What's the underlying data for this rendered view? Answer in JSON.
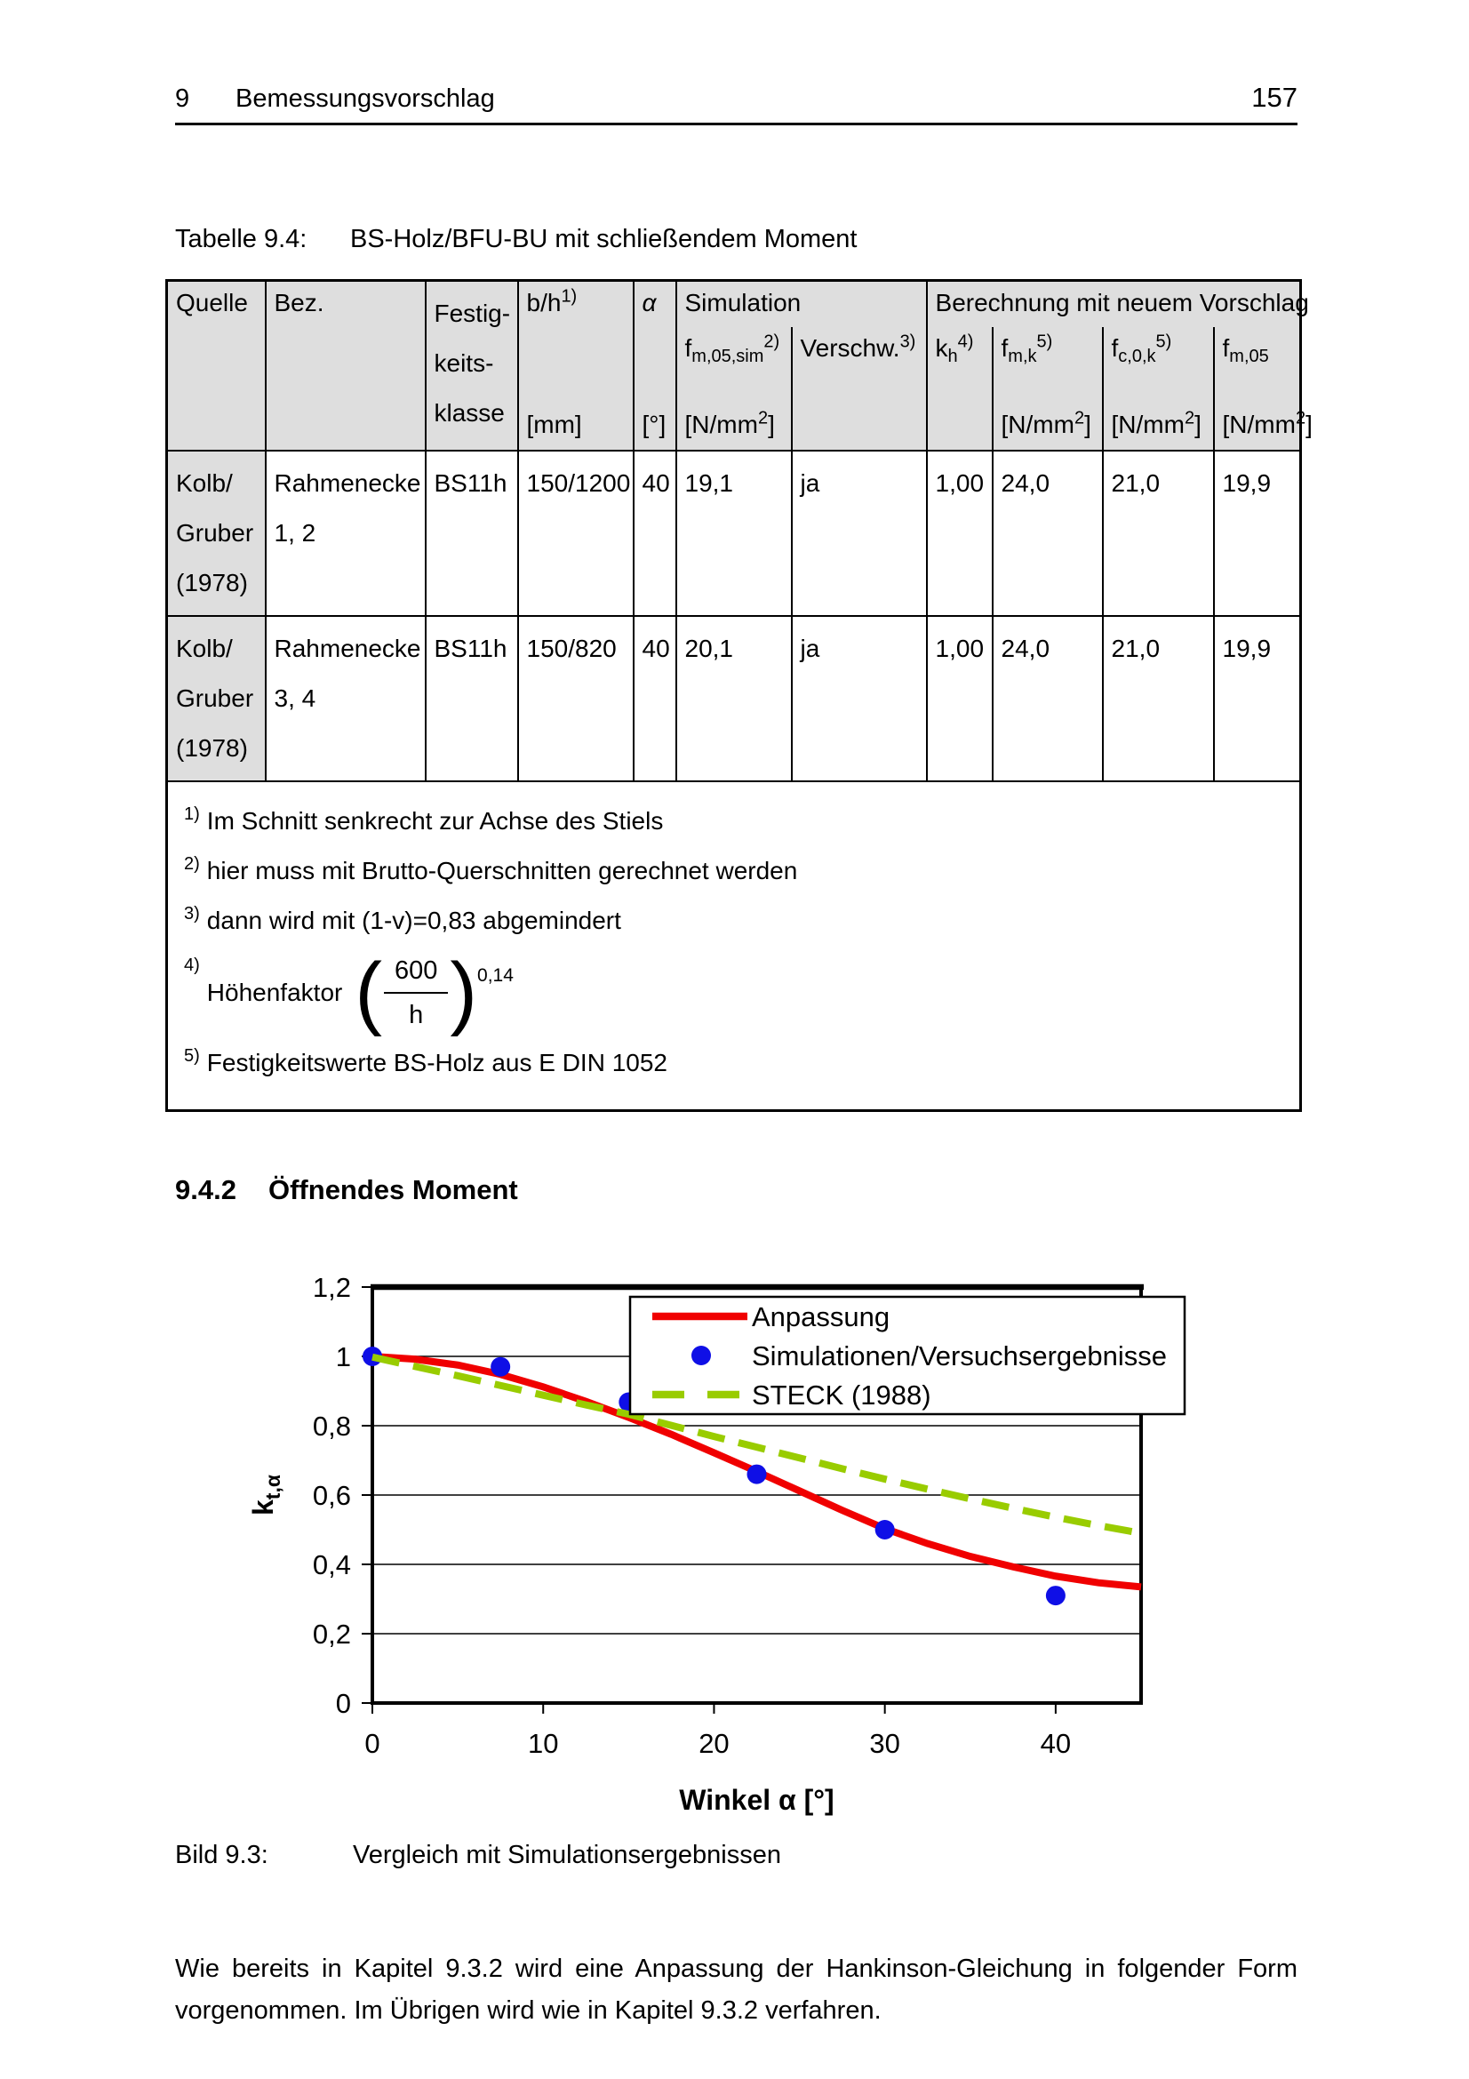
{
  "page": {
    "header": {
      "chapter_number": "9",
      "chapter_title": "Bemessungsvorschlag",
      "page_number": "157"
    },
    "table": {
      "title_label": "Tabelle 9.4:",
      "title_text": "BS-Holz/BFU-BU mit schließendem Moment",
      "headers": {
        "quelle": "Quelle",
        "bez": "Bez.",
        "festig_lines": [
          "Festig-",
          "keits-",
          "klasse"
        ],
        "bh": {
          "base": "b/h",
          "sup": "1)",
          "unit": "[mm]"
        },
        "alpha": {
          "base": "α",
          "unit": "[°]"
        },
        "sim_group": "Simulation",
        "fsim": {
          "f": "f",
          "sub": "m,05,sim",
          "sup": "2)",
          "unit": {
            "p": "[N/mm",
            "s": "2",
            "q": "]"
          }
        },
        "verschw": {
          "base": "Verschw.",
          "sup": "3)"
        },
        "ber_group": "Berechnung mit neuem Vorschlag",
        "kh": {
          "f": "k",
          "sub": "h",
          "sup": "4)"
        },
        "fmk": {
          "f": "f",
          "sub": "m,k",
          "sup": "5)",
          "unit": {
            "p": "[N/mm",
            "s": "2",
            "q": "]"
          }
        },
        "fc0k": {
          "f": "f",
          "sub": "c,0,k",
          "sup": "5)",
          "unit": {
            "p": "[N/mm",
            "s": "2",
            "q": "]"
          }
        },
        "fm05": {
          "f": "f",
          "sub": "m,05",
          "unit": {
            "p": "[N/mm",
            "s": "2",
            "q": "]"
          }
        }
      },
      "rows": [
        {
          "quelle_lines": [
            "Kolb/",
            "Gruber",
            "(1978)"
          ],
          "bez_lines": [
            "Rahmenecke",
            "1, 2"
          ],
          "festig": "BS11h",
          "bh": "150/1200",
          "alpha": "40",
          "fsim": "19,1",
          "verschw": "ja",
          "kh": "1,00",
          "fmk": "24,0",
          "fc0k": "21,0",
          "fm05": "19,9"
        },
        {
          "quelle_lines": [
            "Kolb/",
            "Gruber",
            "(1978)"
          ],
          "bez_lines": [
            "Rahmenecke",
            "3, 4"
          ],
          "festig": "BS11h",
          "bh": "150/820",
          "alpha": "40",
          "fsim": "20,1",
          "verschw": "ja",
          "kh": "1,00",
          "fmk": "24,0",
          "fc0k": "21,0",
          "fm05": "19,9"
        }
      ],
      "footnotes": [
        {
          "num": "1)",
          "text": "Im Schnitt senkrecht zur Achse des Stiels"
        },
        {
          "num": "2)",
          "text": "hier muss mit Brutto-Querschnitten gerechnet werden"
        },
        {
          "num": "3)",
          "text": "dann wird mit (1-v)=0,83 abgemindert"
        },
        {
          "num": "4)",
          "label": "Höhenfaktor",
          "frac_num": "600",
          "frac_den": "h",
          "exponent": "0,14"
        },
        {
          "num": "5)",
          "text": "Festigkeitswerte BS-Holz aus E DIN 1052"
        }
      ]
    },
    "section": {
      "number": "9.4.2",
      "title": "Öffnendes Moment"
    },
    "figure": {
      "caption_label": "Bild 9.3:",
      "caption_text": "Vergleich mit Simulationsergebnissen"
    },
    "paragraph": "Wie bereits in Kapitel 9.3.2 wird eine Anpassung der Hankinson-Gleichung in folgender Form vorgenommen. Im Übrigen wird wie in Kapitel 9.3.2 verfahren."
  },
  "chart_data": {
    "type": "line+scatter",
    "xlabel": "Winkel α [°]",
    "ylabel_base": "k",
    "ylabel_sub": "t,α",
    "xlim": [
      0,
      45
    ],
    "ylim": [
      0,
      1.2
    ],
    "x_ticks": [
      0,
      10,
      20,
      30,
      40
    ],
    "y_ticks": [
      {
        "v": 0.0,
        "label": "0"
      },
      {
        "v": 0.2,
        "label": "0,2"
      },
      {
        "v": 0.4,
        "label": "0,4"
      },
      {
        "v": 0.6,
        "label": "0,6"
      },
      {
        "v": 0.8,
        "label": "0,8"
      },
      {
        "v": 1.0,
        "label": "1"
      },
      {
        "v": 1.2,
        "label": "1,2"
      }
    ],
    "grid": "horizontal",
    "legend_position": "top-right-overlay",
    "series": [
      {
        "name": "Anpassung",
        "type": "line",
        "style": "solid",
        "color": "#f00000",
        "points": [
          [
            0,
            1.0
          ],
          [
            2.5,
            0.992
          ],
          [
            5,
            0.975
          ],
          [
            7.5,
            0.948
          ],
          [
            10,
            0.912
          ],
          [
            12.5,
            0.87
          ],
          [
            15,
            0.824
          ],
          [
            17.5,
            0.775
          ],
          [
            20,
            0.722
          ],
          [
            22.5,
            0.668
          ],
          [
            25,
            0.612
          ],
          [
            27.5,
            0.556
          ],
          [
            30,
            0.503
          ],
          [
            32.5,
            0.46
          ],
          [
            35,
            0.423
          ],
          [
            37.5,
            0.393
          ],
          [
            40,
            0.366
          ],
          [
            42.5,
            0.347
          ],
          [
            45,
            0.335
          ]
        ]
      },
      {
        "name": "Simulationen/Versuchsergebnisse",
        "type": "scatter",
        "color": "#0f0fe6",
        "points": [
          [
            0,
            1.0
          ],
          [
            7.5,
            0.97
          ],
          [
            15,
            0.868
          ],
          [
            22.5,
            0.66
          ],
          [
            30,
            0.5
          ],
          [
            40,
            0.31
          ]
        ]
      },
      {
        "name": "STECK (1988)",
        "type": "line",
        "style": "dashed",
        "color": "#99cc00",
        "points": [
          [
            0,
            0.998
          ],
          [
            2.5,
            0.971
          ],
          [
            5,
            0.944
          ],
          [
            7.5,
            0.916
          ],
          [
            10,
            0.888
          ],
          [
            12.5,
            0.86
          ],
          [
            15,
            0.833
          ],
          [
            17.5,
            0.801
          ],
          [
            20,
            0.769
          ],
          [
            22.5,
            0.738
          ],
          [
            25,
            0.707
          ],
          [
            27.5,
            0.676
          ],
          [
            30,
            0.646
          ],
          [
            32.5,
            0.617
          ],
          [
            35,
            0.589
          ],
          [
            37.5,
            0.562
          ],
          [
            40,
            0.536
          ],
          [
            42.5,
            0.512
          ],
          [
            45,
            0.49
          ]
        ]
      }
    ]
  }
}
